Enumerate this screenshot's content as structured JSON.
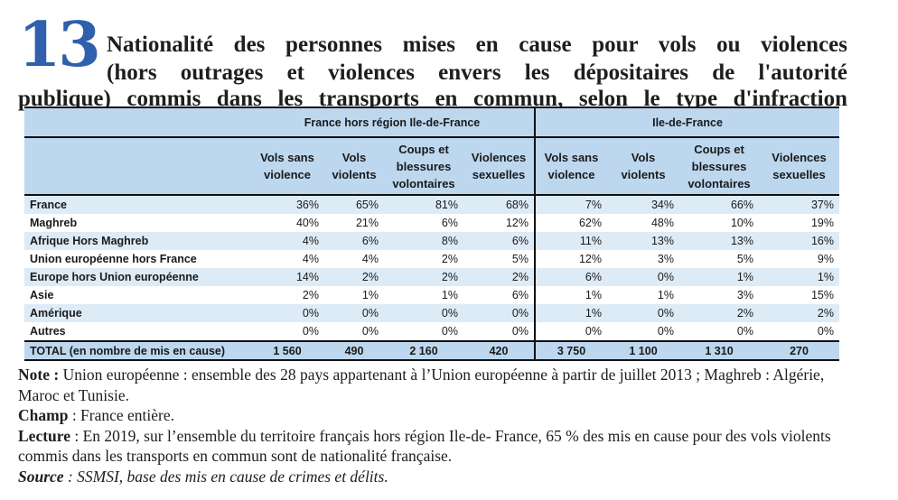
{
  "header": {
    "number": "13",
    "title_lines": [
      "Nationalité des personnes mises en cause pour vols ou violences",
      "(hors outrages et violences envers les dépositaires de l'autorité",
      "publique) commis dans les transports en commun, selon le type d'infraction"
    ]
  },
  "colors": {
    "number_blue": "#2f5fad",
    "header_fill": "#bdd7ee",
    "band_fill": "#ddebf7"
  },
  "table": {
    "groups": [
      "France hors région Ile-de-France",
      "Ile-de-France"
    ],
    "columns": [
      [
        "Vols sans",
        "violence"
      ],
      [
        "Vols",
        "violents"
      ],
      [
        "Coups et",
        "blessures",
        "volontaires"
      ],
      [
        "Violences",
        "sexuelles"
      ]
    ],
    "rows": [
      {
        "label": "France",
        "values": [
          "36%",
          "65%",
          "81%",
          "68%",
          "7%",
          "34%",
          "66%",
          "37%"
        ]
      },
      {
        "label": "Maghreb",
        "values": [
          "40%",
          "21%",
          "6%",
          "12%",
          "62%",
          "48%",
          "10%",
          "19%"
        ]
      },
      {
        "label": "Afrique Hors Maghreb",
        "values": [
          "4%",
          "6%",
          "8%",
          "6%",
          "11%",
          "13%",
          "13%",
          "16%"
        ]
      },
      {
        "label": "Union européenne hors France",
        "values": [
          "4%",
          "4%",
          "2%",
          "5%",
          "12%",
          "3%",
          "5%",
          "9%"
        ]
      },
      {
        "label": "Europe hors Union européenne",
        "values": [
          "14%",
          "2%",
          "2%",
          "2%",
          "6%",
          "0%",
          "1%",
          "1%"
        ]
      },
      {
        "label": "Asie",
        "values": [
          "2%",
          "1%",
          "1%",
          "6%",
          "1%",
          "1%",
          "3%",
          "15%"
        ]
      },
      {
        "label": "Amérique",
        "values": [
          "0%",
          "0%",
          "0%",
          "0%",
          "1%",
          "0%",
          "2%",
          "2%"
        ]
      },
      {
        "label": "Autres",
        "values": [
          "0%",
          "0%",
          "0%",
          "0%",
          "0%",
          "0%",
          "0%",
          "0%"
        ]
      }
    ],
    "total": {
      "label": "TOTAL (en nombre de mis en cause)",
      "values": [
        "1 560",
        "490",
        "2 160",
        "420",
        "3 750",
        "1 100",
        "1 310",
        "270"
      ]
    }
  },
  "notes": {
    "note_label": "Note :",
    "note_text": " Union européenne : ensemble des 28 pays appartenant à l’Union européenne à partir de juillet 2013 ; Maghreb : Algérie, Maroc et Tunisie.",
    "champ_label": "Champ",
    "champ_text": " : France entière.",
    "lecture_label": "Lecture",
    "lecture_text": " : En 2019, sur l’ensemble du territoire français hors région Ile-de- France, 65 % des mis en cause pour des vols violents commis dans les transports en commun sont de nationalité française.",
    "source_label": "Source",
    "source_text": " : SSMSI, base des mis en cause de crimes et délits."
  }
}
